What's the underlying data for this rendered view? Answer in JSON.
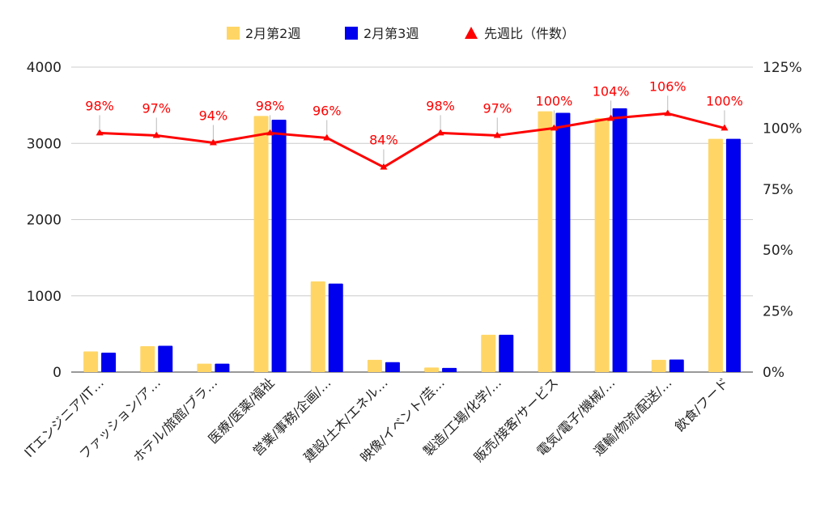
{
  "chart_data": {
    "type": "bar",
    "categories": [
      "ITエンジニア/IT…",
      "ファッション/ア…",
      "ホテル/旅館/ブラ…",
      "医療/医薬/福祉",
      "営業/事務/企画/…",
      "建設/土木/エネル…",
      "映像/イベント/芸…",
      "製造/工場/化学/…",
      "販売/接客/サービス",
      "電気/電子/機械/…",
      "運輸/物流/配送/…",
      "飲食/フード"
    ],
    "series": [
      {
        "name": "2月第2週",
        "type": "bar",
        "axis": "left",
        "color": "#ffd666",
        "values": [
          270,
          340,
          110,
          3360,
          1190,
          160,
          60,
          490,
          3420,
          3330,
          160,
          3060
        ]
      },
      {
        "name": "2月第3週",
        "type": "bar",
        "axis": "left",
        "color": "#0000ee",
        "values": [
          255,
          345,
          110,
          3310,
          1160,
          130,
          55,
          490,
          3400,
          3460,
          165,
          3060
        ]
      },
      {
        "name": "先週比（件数）",
        "type": "line",
        "axis": "right",
        "color": "#ff0000",
        "values": [
          98,
          97,
          94,
          98,
          96,
          84,
          98,
          97,
          100,
          104,
          106,
          100
        ]
      }
    ],
    "data_labels": [
      "98%",
      "97%",
      "94%",
      "98%",
      "96%",
      "84%",
      "98%",
      "97%",
      "100%",
      "104%",
      "106%",
      "100%"
    ],
    "y_left": {
      "range": [
        0,
        4000
      ],
      "ticks": [
        "0",
        "1000",
        "2000",
        "3000",
        "4000"
      ],
      "tick_values": [
        0,
        1000,
        2000,
        3000,
        4000
      ]
    },
    "y_right": {
      "range": [
        0,
        125
      ],
      "ticks": [
        "0%",
        "25%",
        "50%",
        "75%",
        "100%",
        "125%"
      ],
      "tick_values": [
        0,
        25,
        50,
        75,
        100,
        125
      ]
    },
    "legend_position": "top-center",
    "grid": true,
    "title": "",
    "xlabel": "",
    "ylabel": ""
  }
}
